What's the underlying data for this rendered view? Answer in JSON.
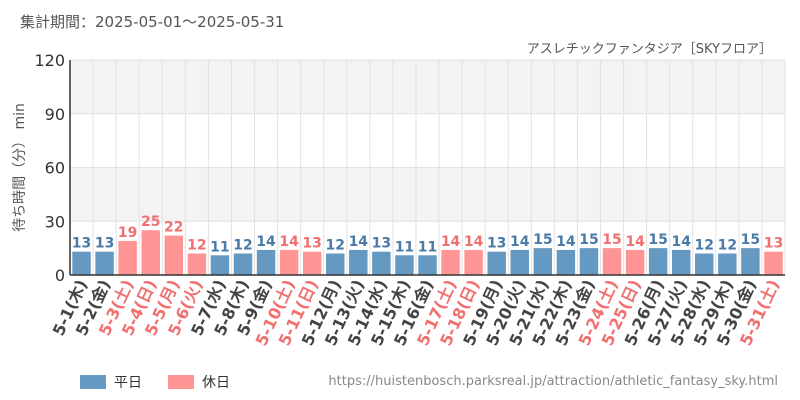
{
  "header": {
    "period": "集計期間：2025-05-01～2025-05-31",
    "title": "アスレチックファンタジア［SKYフロア］"
  },
  "legend": {
    "weekday": "平日",
    "holiday": "休日"
  },
  "source_url": "https://huistenbosch.parksreal.jp/attraction/athletic_fantasy_sky.html",
  "colors": {
    "weekday": "#6699c2",
    "holiday": "#ff9494",
    "weekday_label": "#4a7aa8",
    "holiday_label": "#f07070",
    "band": "#f3f3f3",
    "grid": "#e2e2e2",
    "axis": "#333333"
  },
  "chart_data": {
    "type": "bar",
    "ylabel": "待ち時間（分） min",
    "ylim": [
      0,
      120
    ],
    "yticks": [
      0,
      30,
      60,
      90,
      120
    ],
    "categories": [
      "5-1(木)",
      "5-2(金)",
      "5-3(土)",
      "5-4(日)",
      "5-5(月)",
      "5-6(火)",
      "5-7(水)",
      "5-8(木)",
      "5-9(金)",
      "5-10(土)",
      "5-11(日)",
      "5-12(月)",
      "5-13(火)",
      "5-14(水)",
      "5-15(木)",
      "5-16(金)",
      "5-17(土)",
      "5-18(日)",
      "5-19(月)",
      "5-20(火)",
      "5-21(水)",
      "5-22(木)",
      "5-23(金)",
      "5-24(土)",
      "5-25(日)",
      "5-26(月)",
      "5-27(火)",
      "5-28(水)",
      "5-29(木)",
      "5-30(金)",
      "5-31(土)"
    ],
    "values": [
      13,
      13,
      19,
      25,
      22,
      12,
      11,
      12,
      14,
      14,
      13,
      12,
      14,
      13,
      11,
      11,
      14,
      14,
      13,
      14,
      15,
      14,
      15,
      15,
      14,
      15,
      14,
      12,
      12,
      15,
      13
    ],
    "holiday": [
      false,
      false,
      true,
      true,
      true,
      true,
      false,
      false,
      false,
      true,
      true,
      false,
      false,
      false,
      false,
      false,
      true,
      true,
      false,
      false,
      false,
      false,
      false,
      true,
      true,
      false,
      false,
      false,
      false,
      false,
      true
    ]
  }
}
